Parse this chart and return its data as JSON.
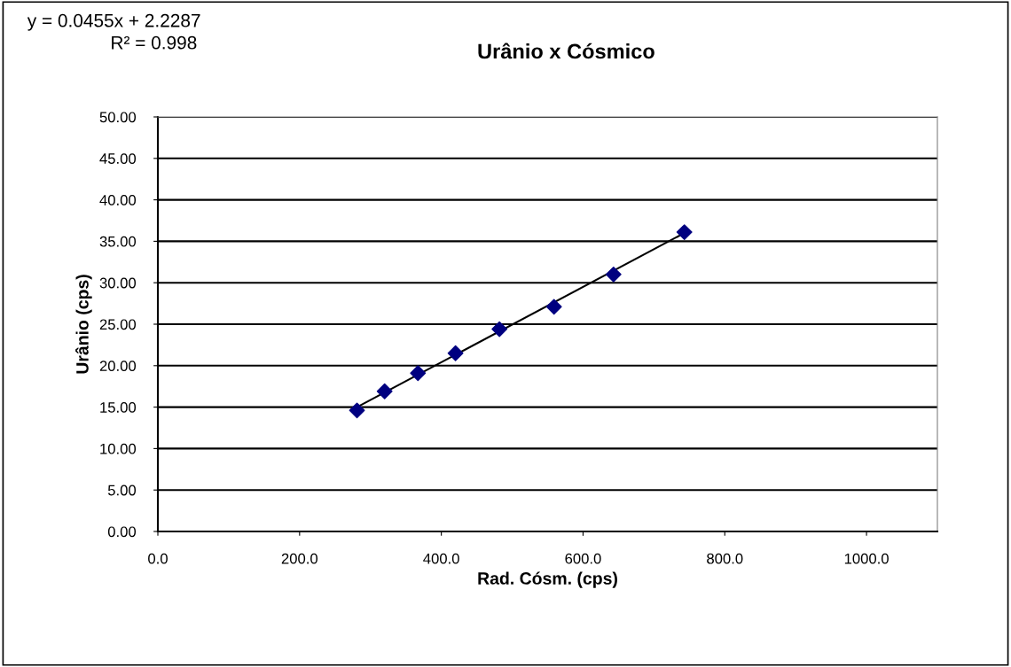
{
  "chart_data": {
    "type": "scatter",
    "title": "Urânio x Cósmico",
    "xlabel": "Rad. Cósm. (cps)",
    "ylabel": "Urânio (cps)",
    "annotations": [
      "y = 0.0455x + 2.2287",
      "R² = 0.998"
    ],
    "x": [
      281,
      320,
      367,
      420,
      482,
      559,
      643,
      743
    ],
    "series": [
      {
        "color": "#000080",
        "marker": "diamond",
        "values": [
          14.6,
          16.9,
          19.1,
          21.5,
          24.4,
          27.1,
          31.0,
          36.1
        ]
      },
      {
        "type": "line",
        "color": "#000000",
        "marker": "none",
        "x": [
          281,
          743
        ],
        "values": [
          15.0,
          36.0
        ]
      }
    ],
    "xlim": [
      0,
      1100
    ],
    "xticks": [
      {
        "value": 0,
        "label": "0.0"
      },
      {
        "value": 200,
        "label": "200.0"
      },
      {
        "value": 400,
        "label": "400.0"
      },
      {
        "value": 600,
        "label": "600.0"
      },
      {
        "value": 800,
        "label": "800.0"
      },
      {
        "value": 1000,
        "label": "1000.0"
      }
    ],
    "ylim": [
      0,
      50
    ],
    "yticks": [
      {
        "value": 0,
        "label": "0.00"
      },
      {
        "value": 5,
        "label": "5.00"
      },
      {
        "value": 10,
        "label": "10.00"
      },
      {
        "value": 15,
        "label": "15.00"
      },
      {
        "value": 20,
        "label": "20.00"
      },
      {
        "value": 25,
        "label": "25.00"
      },
      {
        "value": 30,
        "label": "30.00"
      },
      {
        "value": 35,
        "label": "35.00"
      },
      {
        "value": 40,
        "label": "40.00"
      },
      {
        "value": 45,
        "label": "45.00"
      },
      {
        "value": 50,
        "label": "50.00"
      }
    ],
    "grid": "y"
  }
}
